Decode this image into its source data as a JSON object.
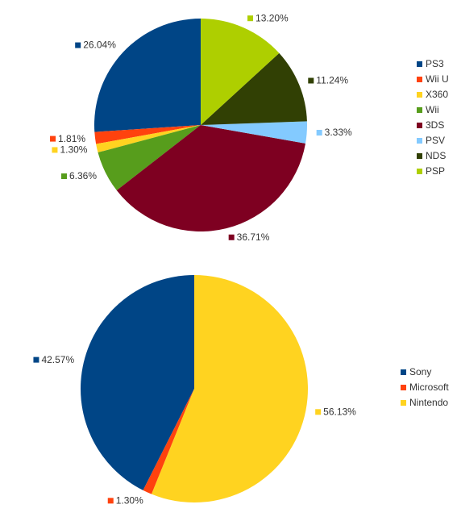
{
  "chart_data": [
    {
      "type": "pie",
      "categories": [
        "PS3",
        "Wii U",
        "X360",
        "Wii",
        "3DS",
        "PSV",
        "NDS",
        "PSP"
      ],
      "values": [
        26.04,
        1.81,
        1.3,
        6.36,
        36.71,
        3.33,
        11.24,
        13.2
      ],
      "value_labels": [
        "26.04%",
        "1.81%",
        "1.30%",
        "6.36%",
        "36.71%",
        "3.33%",
        "11.24%",
        "13.20%"
      ],
      "colors": [
        "#004586",
        "#ff420e",
        "#ffd320",
        "#579d1c",
        "#7e0021",
        "#83caff",
        "#314004",
        "#aecf00"
      ],
      "legend": "right"
    },
    {
      "type": "pie",
      "categories": [
        "Sony",
        "Microsoft",
        "Nintendo"
      ],
      "values": [
        42.57,
        1.3,
        56.13
      ],
      "value_labels": [
        "42.57%",
        "1.30%",
        "56.13%"
      ],
      "colors": [
        "#004586",
        "#ff420e",
        "#ffd320"
      ],
      "legend": "right"
    }
  ]
}
